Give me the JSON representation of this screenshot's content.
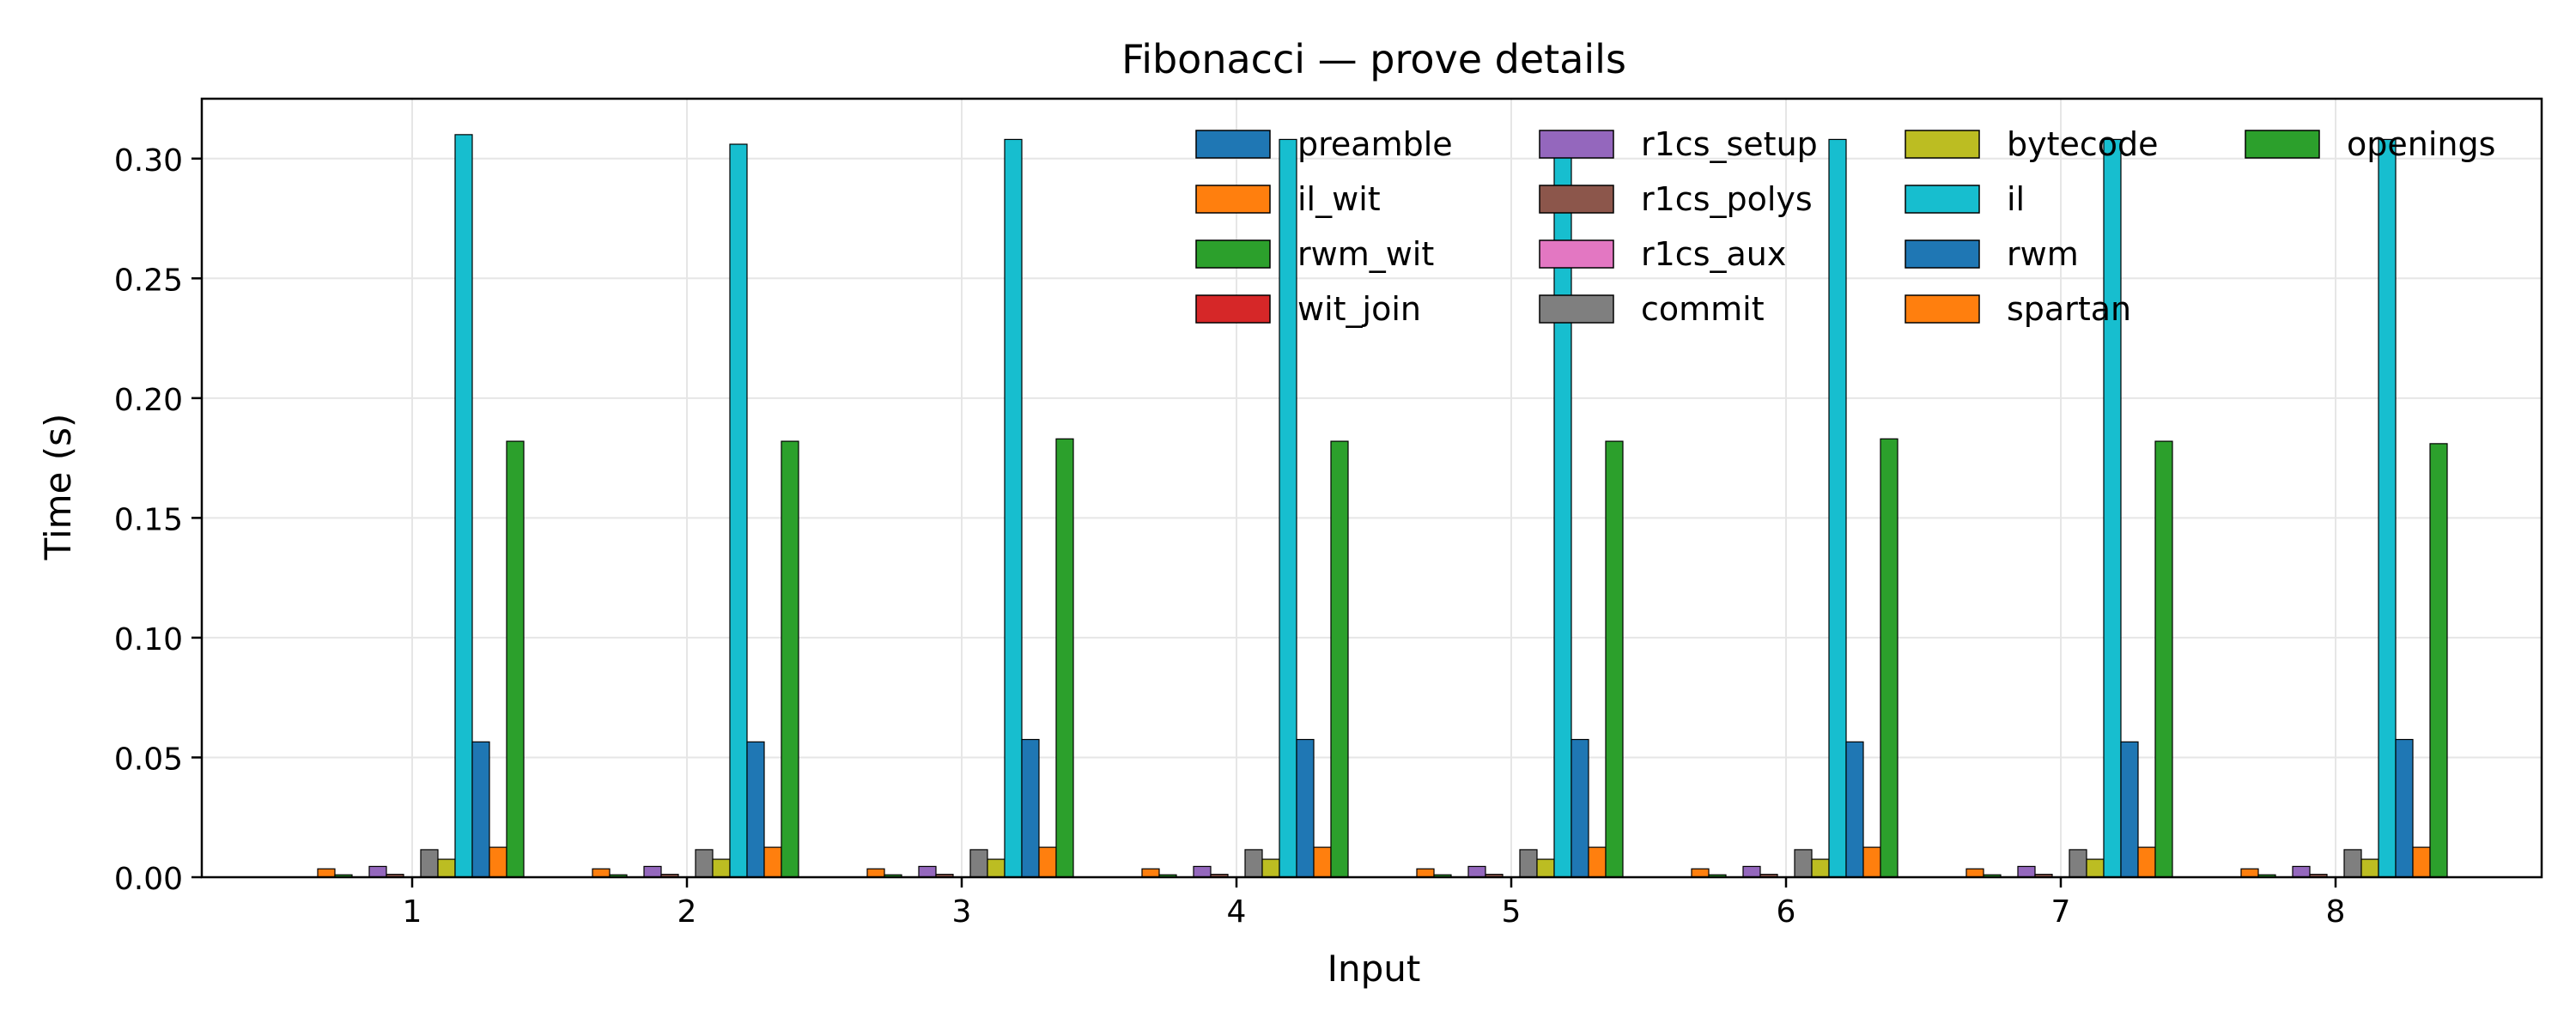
{
  "chart_data": {
    "type": "bar",
    "title": "Fibonacci — prove details",
    "xlabel": "Input",
    "ylabel": "Time (s)",
    "categories": [
      "1",
      "2",
      "3",
      "4",
      "5",
      "6",
      "7",
      "8"
    ],
    "ylim": [
      0,
      0.325
    ],
    "yticks": [
      "0.00",
      "0.05",
      "0.10",
      "0.15",
      "0.20",
      "0.25",
      "0.30"
    ],
    "grid": true,
    "legend_position": "top-right",
    "legend_columns": 4,
    "series": [
      {
        "name": "preamble",
        "color": "#1f77b4",
        "values": [
          0,
          0,
          0,
          0,
          0,
          0,
          0,
          0
        ]
      },
      {
        "name": "il_wit",
        "color": "#ff7f0e",
        "values": [
          0.0035,
          0.0035,
          0.0035,
          0.0035,
          0.0035,
          0.0035,
          0.0035,
          0.0035
        ]
      },
      {
        "name": "rwm_wit",
        "color": "#2ca02c",
        "values": [
          0.001,
          0.001,
          0.001,
          0.001,
          0.001,
          0.001,
          0.001,
          0.001
        ]
      },
      {
        "name": "wit_join",
        "color": "#d62728",
        "values": [
          0,
          0,
          0,
          0,
          0,
          0,
          0,
          0
        ]
      },
      {
        "name": "r1cs_setup",
        "color": "#9467bd",
        "values": [
          0.0045,
          0.0045,
          0.0045,
          0.0045,
          0.0045,
          0.0045,
          0.0045,
          0.0045
        ]
      },
      {
        "name": "r1cs_polys",
        "color": "#8c564b",
        "values": [
          0.0012,
          0.0012,
          0.0012,
          0.0012,
          0.0012,
          0.0012,
          0.0012,
          0.0012
        ]
      },
      {
        "name": "r1cs_aux",
        "color": "#e377c2",
        "values": [
          0,
          0,
          0,
          0,
          0,
          0,
          0,
          0
        ]
      },
      {
        "name": "commit",
        "color": "#7f7f7f",
        "values": [
          0.0115,
          0.0115,
          0.0115,
          0.0115,
          0.0115,
          0.0115,
          0.0115,
          0.0115
        ]
      },
      {
        "name": "bytecode",
        "color": "#bcbd22",
        "values": [
          0.0075,
          0.0075,
          0.0075,
          0.0075,
          0.0075,
          0.0075,
          0.0075,
          0.0075
        ]
      },
      {
        "name": "il",
        "color": "#17becf",
        "values": [
          0.31,
          0.306,
          0.308,
          0.308,
          0.308,
          0.308,
          0.308,
          0.308
        ]
      },
      {
        "name": "rwm",
        "color": "#1f77b4",
        "values": [
          0.0565,
          0.0565,
          0.0575,
          0.0575,
          0.0575,
          0.0565,
          0.0565,
          0.0575
        ]
      },
      {
        "name": "spartan",
        "color": "#ff7f0e",
        "values": [
          0.0125,
          0.0125,
          0.0125,
          0.0125,
          0.0125,
          0.0125,
          0.0125,
          0.0125
        ]
      },
      {
        "name": "openings",
        "color": "#2ca02c",
        "values": [
          0.182,
          0.182,
          0.183,
          0.182,
          0.182,
          0.183,
          0.182,
          0.181
        ]
      }
    ]
  }
}
